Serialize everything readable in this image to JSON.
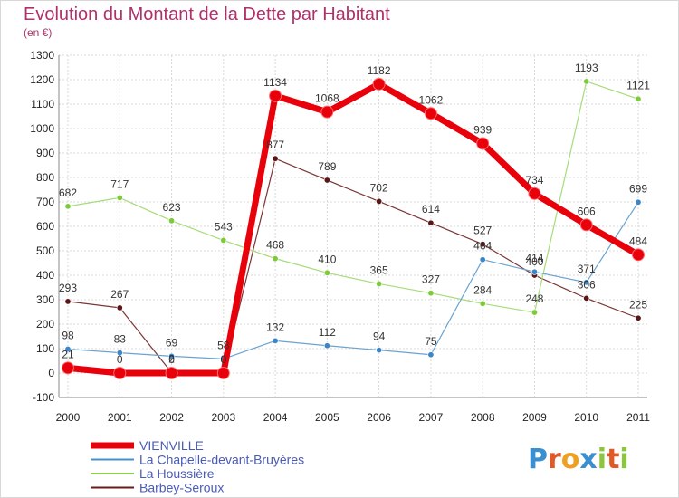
{
  "chart_data": {
    "type": "line",
    "title": "Evolution du Montant de la Dette par Habitant",
    "subtitle": "(en €)",
    "x": [
      "2000",
      "2001",
      "2002",
      "2003",
      "2004",
      "2005",
      "2006",
      "2007",
      "2008",
      "2009",
      "2010",
      "2011"
    ],
    "ylim": [
      -100,
      1300
    ],
    "yticks": [
      -100,
      0,
      100,
      200,
      300,
      400,
      500,
      600,
      700,
      800,
      900,
      1000,
      1100,
      1200,
      1300
    ],
    "grid": true,
    "legend_position": "bottom-left",
    "series": [
      {
        "name": "VIENVILLE",
        "color": "#e8000b",
        "values": [
          21,
          0,
          0,
          0,
          1134,
          1068,
          1182,
          1062,
          939,
          734,
          606,
          484
        ],
        "labels": [
          "21",
          "0",
          "0",
          "0",
          "1134",
          "1068",
          "1182",
          "1062",
          "939",
          "734",
          "606",
          "484"
        ]
      },
      {
        "name": "La Chapelle-devant-Bruyères",
        "color": "#4a90c8",
        "values": [
          98,
          83,
          69,
          58,
          132,
          112,
          94,
          75,
          464,
          414,
          371,
          699
        ],
        "labels": [
          "98",
          "83",
          "69",
          "58",
          "132",
          "112",
          "94",
          "75",
          "464",
          "414",
          "371",
          "699"
        ]
      },
      {
        "name": "La Houssière",
        "color": "#8fd14f",
        "values": [
          682,
          717,
          623,
          543,
          468,
          410,
          365,
          327,
          284,
          248,
          1193,
          1121
        ],
        "labels": [
          "682",
          "717",
          "623",
          "543",
          "468",
          "410",
          "365",
          "327",
          "284",
          "248",
          "1193",
          "1121"
        ]
      },
      {
        "name": "Barbey-Seroux",
        "color": "#6b1a1a",
        "values": [
          293,
          267,
          2,
          0,
          877,
          789,
          702,
          614,
          527,
          400,
          306,
          225
        ],
        "labels": [
          "293",
          "267",
          "2",
          "0",
          "877",
          "789",
          "702",
          "614",
          "527",
          "400",
          "306",
          "225"
        ]
      }
    ]
  },
  "logo": {
    "letters": [
      {
        "char": "P",
        "color": "#3a8fd0"
      },
      {
        "char": "r",
        "color": "#e05a28"
      },
      {
        "char": "o",
        "color": "#f0a020"
      },
      {
        "char": "x",
        "color": "#3a8fd0"
      },
      {
        "char": "i",
        "color": "#8cc63f"
      },
      {
        "char": "t",
        "color": "#e05a28"
      },
      {
        "char": "i",
        "color": "#8cc63f"
      }
    ]
  }
}
